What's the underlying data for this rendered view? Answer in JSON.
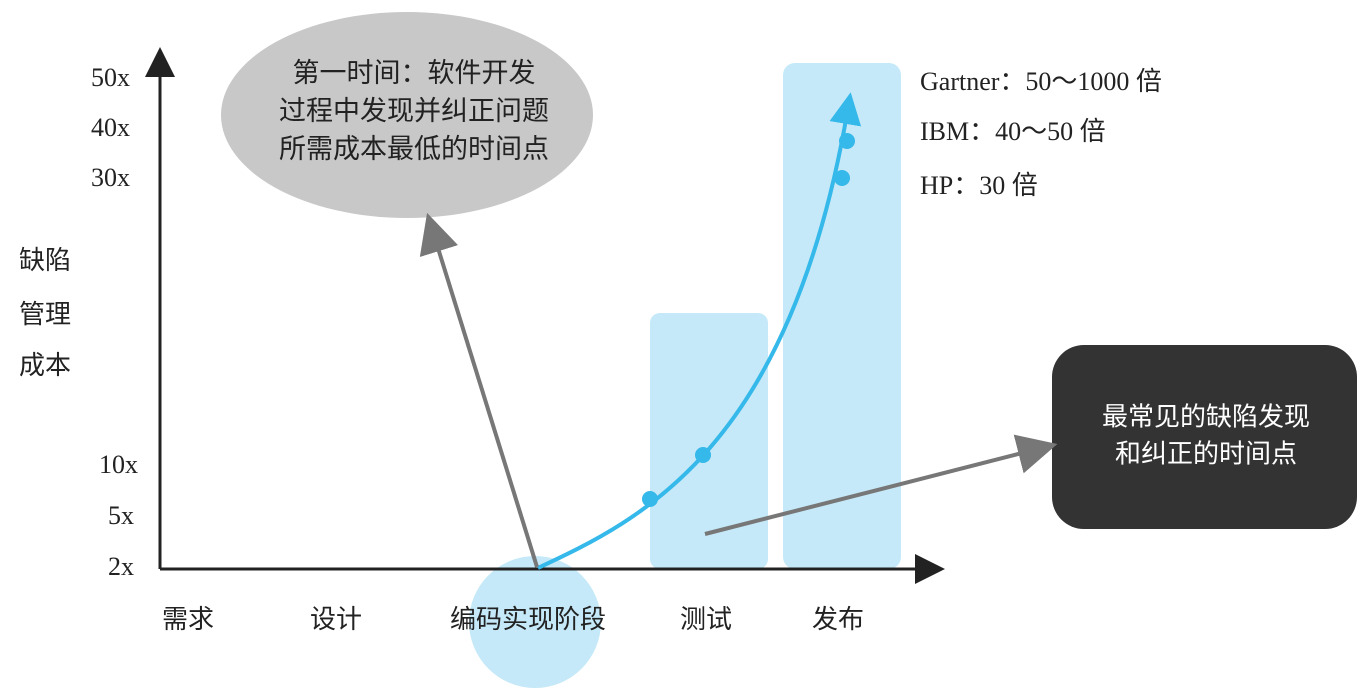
{
  "y_axis": {
    "title": [
      "缺陷",
      "管理",
      "成本"
    ],
    "labels": [
      "50x",
      "40x",
      "30x",
      "10x",
      "5x",
      "2x"
    ]
  },
  "x_axis": {
    "labels": [
      "需求",
      "设计",
      "编码实现阶段",
      "测试",
      "发布"
    ]
  },
  "callouts": {
    "earliest": [
      "第一时间：软件开发",
      "过程中发现并纠正问题",
      "所需成本最低的时间点"
    ],
    "common": [
      "最常见的缺陷发现",
      "和纠正的时间点"
    ]
  },
  "sources": [
    "Gartner：50～1000 倍",
    "IBM：40～50 倍",
    "HP：30 倍"
  ]
}
